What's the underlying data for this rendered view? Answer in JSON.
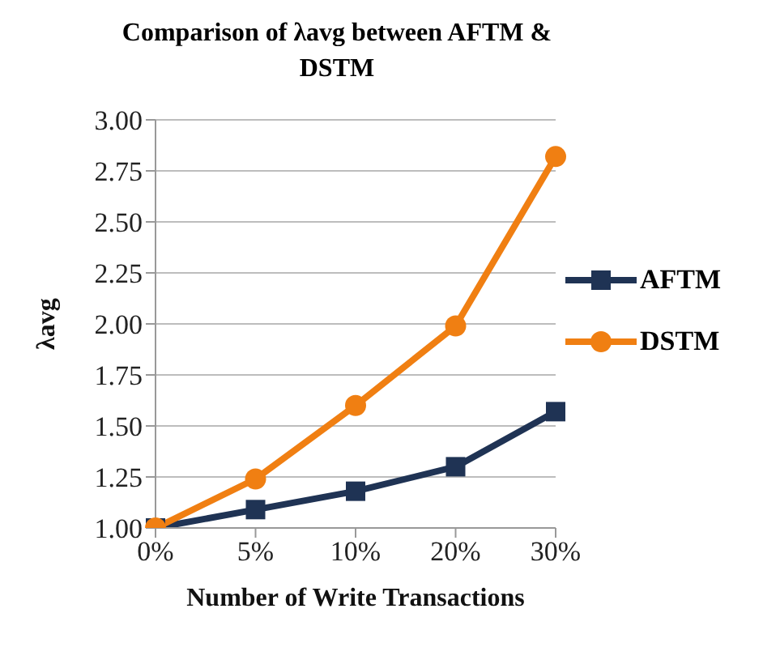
{
  "chart_data": {
    "type": "line",
    "title": "Comparison of λavg between AFTM & DSTM",
    "xlabel": "Number of Write Transactions",
    "ylabel": "λavg",
    "categories": [
      "0%",
      "5%",
      "10%",
      "20%",
      "30%"
    ],
    "series": [
      {
        "name": "AFTM",
        "color": "#1f3354",
        "values": [
          1.0,
          1.09,
          1.18,
          1.3,
          1.57
        ],
        "marker": "square"
      },
      {
        "name": "DSTM",
        "color": "#f07f12",
        "values": [
          1.0,
          1.24,
          1.6,
          1.99,
          2.82
        ],
        "marker": "circle"
      }
    ],
    "ylim": [
      1,
      3
    ],
    "yticks": [
      {
        "value": 1,
        "label": "1.00"
      },
      {
        "value": 1.25,
        "label": "1.25"
      },
      {
        "value": 1.5,
        "label": "1.50"
      },
      {
        "value": 1.75,
        "label": "1.75"
      },
      {
        "value": 2,
        "label": "2.00"
      },
      {
        "value": 2.25,
        "label": "2.25"
      },
      {
        "value": 2.5,
        "label": "2.50"
      },
      {
        "value": 2.75,
        "label": "2.75"
      },
      {
        "value": 3,
        "label": "3.00"
      }
    ],
    "grid": "y",
    "legend": "right",
    "line_style": "solid"
  }
}
